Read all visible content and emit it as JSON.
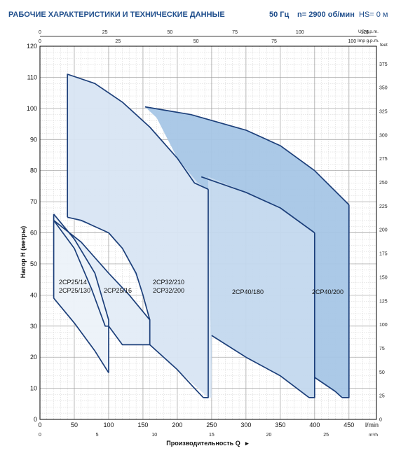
{
  "header": {
    "title": "РАБОЧИЕ ХАРАКТЕРИСТИКИ И ТЕХНИЧЕСКИЕ ДАННЫЕ",
    "freq": "50 Гц",
    "speed": "n= 2900 об/мин",
    "hs": "HS= 0 м"
  },
  "chart_data": {
    "type": "area",
    "title": "РАБОЧИЕ ХАРАКТЕРИСТИКИ И ТЕХНИЧЕСКИЕ ДАННЫЕ",
    "ylabel": "Напор H (метры)",
    "xlabel": "Производительность Q",
    "x_units": {
      "bottom": "l/min",
      "bottom2": "m³/h",
      "top": "US g.p.m.",
      "top2": "Imp g.p.m."
    },
    "y_units": {
      "right": "feet"
    },
    "xlim": [
      0,
      490
    ],
    "ylim": [
      0,
      120
    ],
    "grid": true,
    "x_ticks_lmin": [
      "0",
      "50",
      "100",
      "150",
      "200",
      "250",
      "300",
      "350",
      "400",
      "450"
    ],
    "x_ticks_m3h": [
      "0",
      "5",
      "10",
      "15",
      "20",
      "25"
    ],
    "x_ticks_usgpm": [
      "0",
      "25",
      "50",
      "75",
      "100",
      "125"
    ],
    "x_ticks_impgpm": [
      "0",
      "25",
      "50",
      "75",
      "100"
    ],
    "y_ticks_m": [
      "0",
      "10",
      "20",
      "30",
      "40",
      "50",
      "60",
      "70",
      "80",
      "90",
      "100",
      "110",
      "120"
    ],
    "y_ticks_ft": [
      "0",
      "25",
      "50",
      "75",
      "100",
      "125",
      "150",
      "175",
      "200",
      "225",
      "250",
      "275",
      "300",
      "325",
      "350",
      "375",
      "feet"
    ],
    "series": [
      {
        "name": "2CP40/200",
        "labels": [
          "2CP40/200"
        ],
        "fill": "#a9c9e8",
        "outline": [
          [
            158,
            70
          ],
          [
            245,
            74
          ],
          [
            245,
            84
          ],
          [
            300,
            76
          ],
          [
            400,
            60
          ],
          [
            400,
            20
          ],
          [
            420,
            0
          ],
          [
            400,
            0
          ],
          [
            380,
            7
          ],
          [
            450,
            7
          ],
          [
            450,
            69
          ],
          [
            380,
            85
          ],
          [
            320,
            95
          ],
          [
            250,
            101
          ],
          [
            158,
            100.5
          ]
        ],
        "upper": [
          [
            153,
            100.5
          ],
          [
            220,
            98
          ],
          [
            300,
            93
          ],
          [
            380,
            82
          ],
          [
            450,
            69
          ]
        ],
        "lower": [
          [
            400,
            13.5
          ],
          [
            430,
            9
          ],
          [
            450,
            7
          ]
        ]
      },
      {
        "name": "2CP40/180",
        "labels": [
          "2CP40/180"
        ],
        "fill": "#c7dbef",
        "upper": [
          [
            245,
            78
          ],
          [
            300,
            73
          ],
          [
            350,
            68
          ],
          [
            400,
            60
          ]
        ],
        "lower": [
          [
            250,
            27
          ],
          [
            300,
            20
          ],
          [
            350,
            14
          ],
          [
            400,
            7
          ]
        ]
      },
      {
        "name": "2CP32/210",
        "labels": [
          "2CP32/210",
          "2CP32/200"
        ],
        "fill": "#dbe7f4",
        "upper": [
          [
            40,
            111
          ],
          [
            80,
            108
          ],
          [
            120,
            102
          ],
          [
            160,
            94
          ],
          [
            200,
            84
          ],
          [
            235,
            74
          ],
          [
            245,
            74
          ]
        ],
        "lower": [
          [
            160,
            24
          ],
          [
            200,
            16
          ],
          [
            230,
            10
          ],
          [
            250,
            7
          ]
        ]
      },
      {
        "name": "2CP25/16",
        "labels": [
          "2CP25/16"
        ],
        "fill": "#e6eef8",
        "upper": [
          [
            20,
            64
          ],
          [
            60,
            55
          ],
          [
            100,
            45
          ],
          [
            140,
            35
          ],
          [
            160,
            32
          ]
        ],
        "lower": [
          [
            100,
            30
          ],
          [
            120,
            24
          ],
          [
            160,
            24
          ]
        ]
      },
      {
        "name": "2CP25/14",
        "labels": [
          "2CP25/14",
          "2CP25/130"
        ],
        "fill": "#eef3fa",
        "upper": [
          [
            20,
            66
          ],
          [
            50,
            58
          ],
          [
            80,
            47
          ],
          [
            100,
            32
          ]
        ],
        "lower": [
          [
            20,
            39
          ],
          [
            50,
            31
          ],
          [
            80,
            22
          ],
          [
            100,
            15
          ]
        ]
      }
    ]
  }
}
